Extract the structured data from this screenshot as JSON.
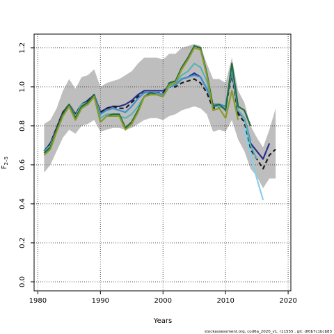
{
  "chart_data": {
    "type": "line",
    "xlabel": "Years",
    "ylabel_main": "F",
    "ylabel_sub": "2–5",
    "xlim": [
      1980,
      2020
    ],
    "ylim": [
      0,
      1.2
    ],
    "x_ticks": [
      1980,
      1990,
      2000,
      2010,
      2020
    ],
    "y_ticks": [
      0.0,
      0.2,
      0.4,
      0.6,
      0.8,
      1.0,
      1.2
    ],
    "grid": true,
    "band_color": "#bebebe",
    "band": {
      "x": [
        1981,
        1982,
        1983,
        1984,
        1985,
        1986,
        1987,
        1988,
        1989,
        1990,
        1991,
        1992,
        1993,
        1994,
        1995,
        1996,
        1997,
        1998,
        1999,
        2000,
        2001,
        2002,
        2003,
        2004,
        2005,
        2006,
        2007,
        2008,
        2009,
        2010,
        2011,
        2012,
        2013,
        2014,
        2015,
        2016,
        2017,
        2018
      ],
      "upper": [
        0.81,
        0.83,
        0.89,
        0.98,
        1.04,
        0.99,
        1.05,
        1.06,
        1.09,
        1.0,
        1.02,
        1.03,
        1.04,
        1.06,
        1.08,
        1.12,
        1.15,
        1.15,
        1.15,
        1.14,
        1.17,
        1.17,
        1.2,
        1.21,
        1.22,
        1.21,
        1.12,
        1.04,
        1.04,
        1.02,
        1.15,
        0.98,
        0.92,
        0.8,
        0.74,
        0.69,
        0.78,
        0.89
      ],
      "lower": [
        0.56,
        0.6,
        0.67,
        0.74,
        0.78,
        0.76,
        0.8,
        0.81,
        0.83,
        0.77,
        0.78,
        0.79,
        0.79,
        0.78,
        0.79,
        0.81,
        0.83,
        0.84,
        0.84,
        0.83,
        0.85,
        0.86,
        0.88,
        0.89,
        0.9,
        0.89,
        0.86,
        0.77,
        0.78,
        0.77,
        0.83,
        0.73,
        0.67,
        0.58,
        0.54,
        0.48,
        0.53,
        0.53
      ]
    },
    "series": [
      {
        "color": "#2b2d8c",
        "dash": "",
        "x": [
          1981,
          1982,
          1983,
          1984,
          1985,
          1986,
          1987,
          1988,
          1989,
          1990,
          1991,
          1992,
          1993,
          1994,
          1995,
          1996,
          1997,
          1998,
          1999,
          2000,
          2001,
          2002,
          2003,
          2004,
          2005,
          2006,
          2007,
          2008,
          2009,
          2010,
          2011,
          2012,
          2013,
          2014,
          2015,
          2016,
          2017
        ],
        "y": [
          0.67,
          0.71,
          0.79,
          0.87,
          0.91,
          0.86,
          0.91,
          0.93,
          0.96,
          0.87,
          0.89,
          0.9,
          0.9,
          0.91,
          0.93,
          0.96,
          0.98,
          0.98,
          0.98,
          0.98,
          1.0,
          1.01,
          1.04,
          1.05,
          1.07,
          1.05,
          0.99,
          0.91,
          0.91,
          0.9,
          1.08,
          0.87,
          0.84,
          0.71,
          0.67,
          0.63,
          0.71
        ]
      },
      {
        "color": "#1a1a1a",
        "dash": "6,4",
        "x": [
          1981,
          1982,
          1983,
          1984,
          1985,
          1986,
          1987,
          1988,
          1989,
          1990,
          1991,
          1992,
          1993,
          1994,
          1995,
          1996,
          1997,
          1998,
          1999,
          2000,
          2001,
          2002,
          2003,
          2004,
          2005,
          2006,
          2007,
          2008,
          2009,
          2010,
          2011,
          2012,
          2013,
          2014,
          2015,
          2016,
          2017,
          2018
        ],
        "y": [
          0.67,
          0.71,
          0.79,
          0.87,
          0.91,
          0.86,
          0.91,
          0.93,
          0.96,
          0.87,
          0.89,
          0.9,
          0.89,
          0.89,
          0.92,
          0.95,
          0.97,
          0.97,
          0.97,
          0.97,
          1.0,
          1.0,
          1.02,
          1.03,
          1.04,
          1.02,
          0.97,
          0.89,
          0.9,
          0.89,
          1.07,
          0.86,
          0.82,
          0.68,
          0.63,
          0.58,
          0.65,
          0.68
        ]
      },
      {
        "color": "#3d8fd0",
        "dash": "",
        "x": [
          1981,
          1982,
          1983,
          1984,
          1985,
          1986,
          1987,
          1988,
          1989,
          1990,
          1991,
          1992,
          1993,
          1994,
          1995,
          1996,
          1997,
          1998,
          1999,
          2000,
          2001,
          2002,
          2003,
          2004,
          2005,
          2006,
          2007,
          2008,
          2009,
          2010,
          2011,
          2012,
          2013,
          2014
        ],
        "y": [
          0.67,
          0.7,
          0.78,
          0.86,
          0.91,
          0.85,
          0.91,
          0.92,
          0.96,
          0.86,
          0.88,
          0.89,
          0.88,
          0.87,
          0.9,
          0.94,
          0.97,
          0.97,
          0.97,
          0.96,
          1.0,
          1.01,
          1.04,
          1.05,
          1.06,
          1.05,
          0.99,
          0.91,
          0.91,
          0.9,
          1.09,
          0.88,
          0.84,
          0.72
        ]
      },
      {
        "color": "#5ab4b3",
        "dash": "",
        "x": [
          1981,
          1982,
          1983,
          1984,
          1985,
          1986,
          1987,
          1988,
          1989,
          1990,
          1991,
          1992,
          1993,
          1994,
          1995,
          1996,
          1997,
          1998,
          1999,
          2000,
          2001,
          2002,
          2003,
          2004,
          2005,
          2006,
          2007,
          2008,
          2009,
          2010,
          2011,
          2012,
          2013,
          2014,
          2015
        ],
        "y": [
          0.66,
          0.7,
          0.78,
          0.86,
          0.91,
          0.85,
          0.91,
          0.92,
          0.96,
          0.84,
          0.86,
          0.86,
          0.85,
          0.84,
          0.86,
          0.9,
          0.95,
          0.96,
          0.96,
          0.95,
          1.0,
          1.02,
          1.06,
          1.08,
          1.12,
          1.1,
          1.03,
          0.9,
          0.9,
          0.89,
          1.1,
          0.88,
          0.84,
          0.7,
          0.63
        ]
      },
      {
        "color": "#86cfef",
        "dash": "",
        "x": [
          2013,
          2014,
          2015,
          2016
        ],
        "y": [
          0.79,
          0.65,
          0.53,
          0.42
        ]
      },
      {
        "color": "#1f6b3e",
        "dash": "",
        "x": [
          1981,
          1982,
          1983,
          1984,
          1985,
          1986,
          1987,
          1988,
          1989,
          1990,
          1991,
          1992,
          1993,
          1994,
          1995,
          1996,
          1997,
          1998,
          1999,
          2000,
          2001,
          2002,
          2003,
          2004,
          2005,
          2006,
          2007,
          2008,
          2009,
          2010,
          2011,
          2012,
          2013,
          2014
        ],
        "y": [
          0.66,
          0.69,
          0.78,
          0.86,
          0.91,
          0.84,
          0.9,
          0.92,
          0.96,
          0.82,
          0.85,
          0.86,
          0.86,
          0.79,
          0.82,
          0.88,
          0.95,
          0.97,
          0.96,
          0.95,
          1.02,
          1.03,
          1.1,
          1.15,
          1.21,
          1.2,
          1.07,
          0.9,
          0.91,
          0.88,
          1.12,
          0.9,
          0.88,
          0.8
        ]
      },
      {
        "color": "#8a9a2a",
        "dash": "",
        "x": [
          1981,
          1982,
          1983,
          1984,
          1985,
          1986,
          1987,
          1988,
          1989,
          1990,
          1991,
          1992,
          1993,
          1994,
          1995,
          1996,
          1997,
          1998,
          1999,
          2000,
          2001,
          2002,
          2003,
          2004,
          2005,
          2006,
          2007,
          2008,
          2009,
          2010,
          2011,
          2012
        ],
        "y": [
          0.65,
          0.68,
          0.77,
          0.85,
          0.9,
          0.83,
          0.89,
          0.91,
          0.95,
          0.82,
          0.85,
          0.85,
          0.85,
          0.78,
          0.81,
          0.87,
          0.95,
          0.96,
          0.96,
          0.95,
          1.01,
          1.02,
          1.09,
          1.14,
          1.2,
          1.19,
          1.06,
          0.88,
          0.89,
          0.84,
          0.98,
          0.83
        ]
      }
    ]
  },
  "footer_text": "stockassessment.org, cod6a_2020_v1, r11555 , git: df0b7c1bcb83"
}
